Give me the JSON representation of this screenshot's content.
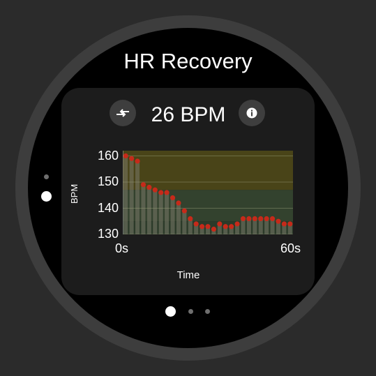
{
  "screen": {
    "title": "HR Recovery",
    "value_display": "26 BPM",
    "icons": {
      "left_button": "swap-arrows-icon",
      "right_button": "info-icon"
    }
  },
  "chart_data": {
    "type": "bar",
    "xlabel": "Time",
    "ylabel": "BPM",
    "xlim": [
      0,
      60
    ],
    "ylim": [
      130,
      162
    ],
    "x_tick_labels": [
      "0s",
      "60s"
    ],
    "y_ticks": [
      160,
      150,
      140,
      130
    ],
    "zone_bands": [
      {
        "from": 147,
        "to": 162,
        "color": "#494418"
      },
      {
        "from": 135,
        "to": 147,
        "color": "#33422e"
      },
      {
        "from": 130,
        "to": 135,
        "color": "#2b3a29"
      }
    ],
    "series": [
      {
        "values": [
          160,
          159,
          158,
          149,
          148,
          147,
          146,
          146,
          144,
          142,
          139,
          136,
          134,
          133,
          133,
          132,
          134,
          133,
          133,
          134,
          136,
          136,
          136,
          136,
          136,
          136,
          135,
          134,
          134
        ],
        "bar_color": "#7a7a6a",
        "marker_color": "#c62a1a"
      }
    ]
  },
  "pager": {
    "horizontal_pages": 3,
    "horizontal_active": 0,
    "vertical_pages": 2,
    "vertical_active": 1
  }
}
